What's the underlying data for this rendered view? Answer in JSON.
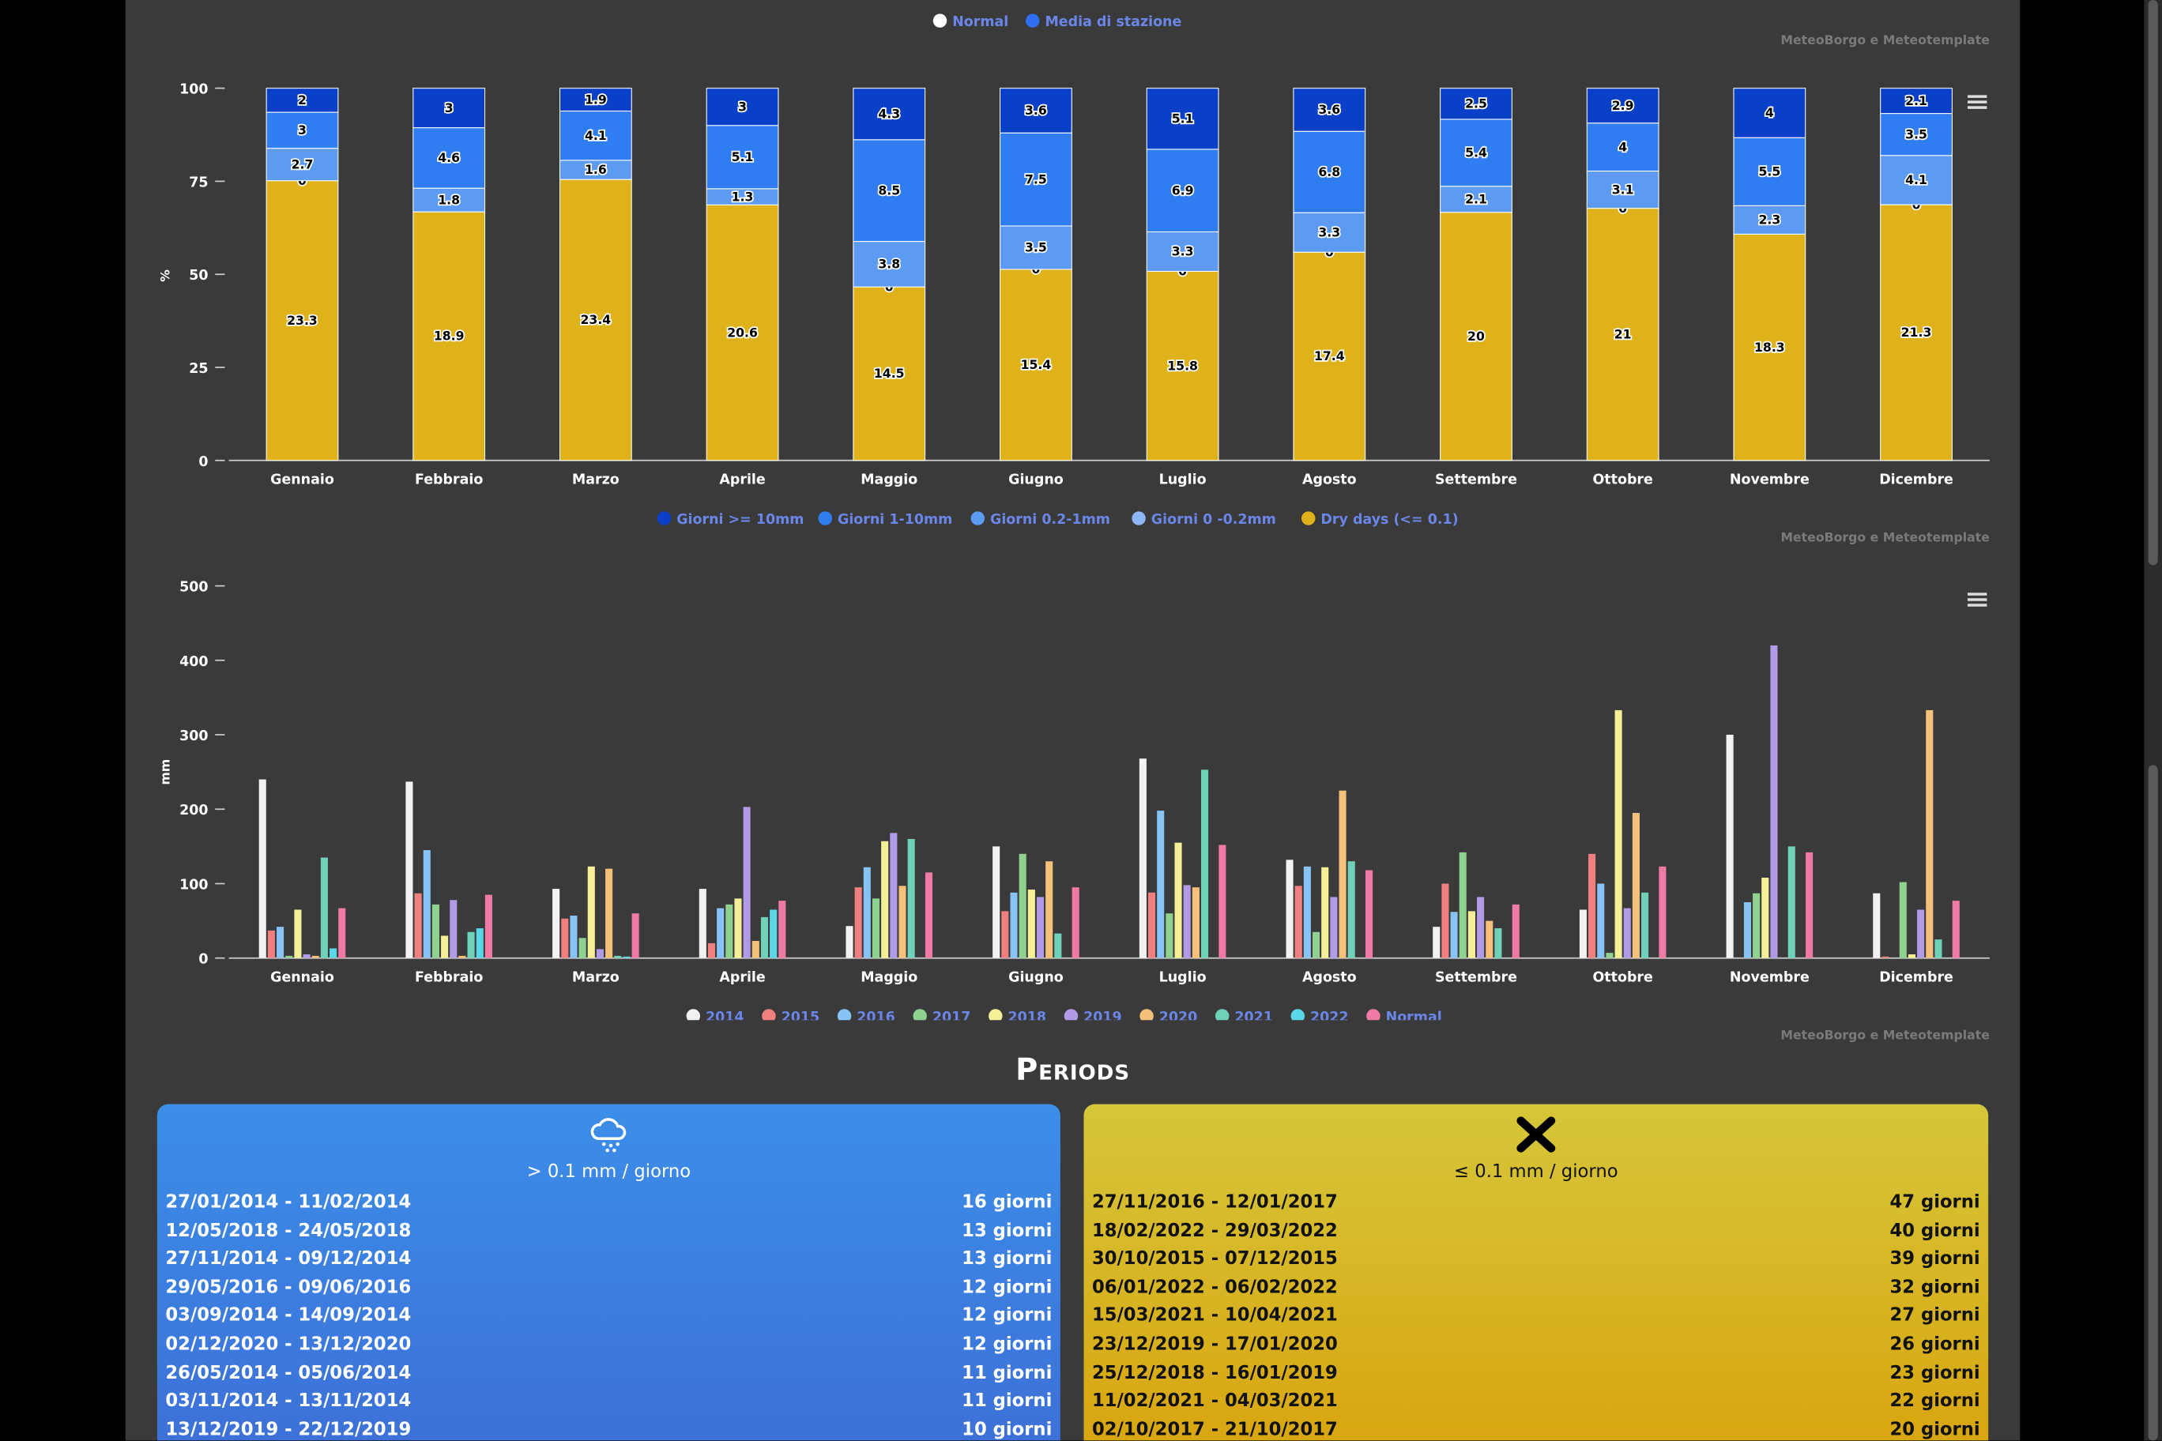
{
  "chart1": {
    "legend": [
      {
        "name": "Normal",
        "color": "#ffffff"
      },
      {
        "name": "Media di stazione",
        "color": "#2f6ef0"
      }
    ],
    "credit": "MeteoBorgo e Meteotemplate"
  },
  "chart_data": [
    {
      "type": "bar",
      "stacked": true,
      "ylabel": "%",
      "ylim": [
        0,
        100
      ],
      "yticks": [
        "0",
        "25",
        "50",
        "75",
        "100"
      ],
      "categories": [
        "Gennaio",
        "Febbraio",
        "Marzo",
        "Aprile",
        "Maggio",
        "Giugno",
        "Luglio",
        "Agosto",
        "Settembre",
        "Ottobre",
        "Novembre",
        "Dicembre"
      ],
      "series": [
        {
          "name": "Dry days (<= 0.1)",
          "color": "#dfb21c",
          "values": [
            23.3,
            18.9,
            23.4,
            20.6,
            14.5,
            15.4,
            15.8,
            17.4,
            20,
            21,
            18.3,
            21.3
          ]
        },
        {
          "name": "Giorni 0 -0.2mm",
          "color": "#8fb6f5",
          "values": [
            0,
            0,
            0,
            0,
            0,
            0,
            0,
            0,
            0,
            0,
            0,
            0
          ]
        },
        {
          "name": "Giorni 0.2-1mm",
          "color": "#5d9bf2",
          "values": [
            2.7,
            1.8,
            1.6,
            1.3,
            3.8,
            3.5,
            3.3,
            3.3,
            2.1,
            3.1,
            2.3,
            4.1
          ]
        },
        {
          "name": "Giorni 1-10mm",
          "color": "#2f7df0",
          "values": [
            3,
            4.6,
            4.1,
            5.1,
            8.5,
            7.5,
            6.9,
            6.8,
            5.4,
            4,
            5.5,
            3.5
          ]
        },
        {
          "name": "Giorni >= 10mm",
          "color": "#0a3fc7",
          "values": [
            2,
            3,
            1.9,
            3,
            4.3,
            3.6,
            5.1,
            3.6,
            2.5,
            2.9,
            4,
            2.1
          ]
        }
      ],
      "data_labels": {
        "dry": [
          "23.3",
          "18.9",
          "23.4",
          "20.6",
          "14.5",
          "15.4",
          "15.8",
          "17.4",
          "20",
          "21",
          "18.3",
          "21.3"
        ],
        "g0": [
          "0",
          "",
          "",
          "",
          "0",
          "0",
          "0",
          "0",
          "",
          "0",
          "",
          "0"
        ],
        "g02": [
          "2.7",
          "1.8",
          "1.6",
          "1.3",
          "3.8",
          "3.5",
          "3.3",
          "3.3",
          "2.1",
          "3.1",
          "2.3",
          "4.1"
        ],
        "g1": [
          "3",
          "4.6",
          "4.1",
          "5.1",
          "8.5",
          "7.5",
          "6.9",
          "6.8",
          "5.4",
          "4",
          "5.5",
          "3.5"
        ],
        "g10": [
          "2",
          "3",
          "1.9",
          "3",
          "4.3",
          "3.6",
          "5.1",
          "3.6",
          "2.5",
          "2.9",
          "4",
          "2.1"
        ]
      },
      "legend_position": "bottom-center",
      "grid": false
    },
    {
      "type": "bar",
      "ylabel": "mm",
      "ylim": [
        0,
        500
      ],
      "yticks": [
        "0",
        "100",
        "200",
        "300",
        "400",
        "500"
      ],
      "categories": [
        "Gennaio",
        "Febbraio",
        "Marzo",
        "Aprile",
        "Maggio",
        "Giugno",
        "Luglio",
        "Agosto",
        "Settembre",
        "Ottobre",
        "Novembre",
        "Dicembre"
      ],
      "series": [
        {
          "name": "2014",
          "color": "#f2f2f2",
          "values": [
            240,
            237,
            93,
            93,
            43,
            150,
            268,
            132,
            42,
            65,
            300,
            87
          ]
        },
        {
          "name": "2015",
          "color": "#f08080",
          "values": [
            37,
            87,
            53,
            20,
            95,
            63,
            88,
            97,
            100,
            140,
            0,
            2
          ]
        },
        {
          "name": "2016",
          "color": "#87c3f5",
          "values": [
            42,
            145,
            57,
            67,
            122,
            88,
            198,
            123,
            62,
            100,
            75,
            0
          ]
        },
        {
          "name": "2017",
          "color": "#8fd18f",
          "values": [
            3,
            72,
            27,
            72,
            80,
            140,
            60,
            35,
            142,
            7,
            87,
            102
          ]
        },
        {
          "name": "2018",
          "color": "#f5f098",
          "values": [
            65,
            30,
            123,
            80,
            157,
            92,
            155,
            122,
            63,
            333,
            108,
            5
          ]
        },
        {
          "name": "2019",
          "color": "#b19be6",
          "values": [
            5,
            78,
            12,
            203,
            168,
            82,
            98,
            82,
            82,
            67,
            420,
            65
          ]
        },
        {
          "name": "2020",
          "color": "#f5c07a",
          "values": [
            3,
            3,
            120,
            23,
            97,
            130,
            95,
            225,
            50,
            195,
            0,
            333
          ]
        },
        {
          "name": "2021",
          "color": "#6fd2b8",
          "values": [
            135,
            35,
            3,
            55,
            160,
            33,
            253,
            130,
            40,
            88,
            150,
            25
          ]
        },
        {
          "name": "2022",
          "color": "#5ad6e6",
          "values": [
            13,
            40,
            2,
            65,
            0,
            0,
            0,
            0,
            0,
            0,
            0,
            0
          ]
        },
        {
          "name": "Normal",
          "color": "#f07aa6",
          "values": [
            67,
            85,
            60,
            77,
            115,
            95,
            152,
            118,
            72,
            123,
            142,
            77
          ]
        }
      ],
      "legend_position": "bottom-center",
      "grid": false
    }
  ],
  "chart2": {
    "legend": [
      "Giorni >= 10mm",
      "Giorni 1-10mm",
      "Giorni 0.2-1mm",
      "Giorni 0 -0.2mm",
      "Dry days (<= 0.1)"
    ],
    "legend_colors": [
      "#0a3fc7",
      "#2f7df0",
      "#5d9bf2",
      "#8fb6f5",
      "#dfb21c"
    ],
    "credit": "MeteoBorgo e Meteotemplate"
  },
  "chart3": {
    "legend": [
      "2014",
      "2015",
      "2016",
      "2017",
      "2018",
      "2019",
      "2020",
      "2021",
      "2022",
      "Normal"
    ],
    "credit": "MeteoBorgo e Meteotemplate"
  },
  "periods": {
    "title": "Periods",
    "rain": {
      "icon": "rain-cloud-icon",
      "subtitle": "> 0.1 mm / giorno",
      "rows": [
        {
          "range": "27/01/2014 - 11/02/2014",
          "days": "16 giorni"
        },
        {
          "range": "12/05/2018 - 24/05/2018",
          "days": "13 giorni"
        },
        {
          "range": "27/11/2014 - 09/12/2014",
          "days": "13 giorni"
        },
        {
          "range": "29/05/2016 - 09/06/2016",
          "days": "12 giorni"
        },
        {
          "range": "03/09/2014 - 14/09/2014",
          "days": "12 giorni"
        },
        {
          "range": "02/12/2020 - 13/12/2020",
          "days": "12 giorni"
        },
        {
          "range": "26/05/2014 - 05/06/2014",
          "days": "11 giorni"
        },
        {
          "range": "03/11/2014 - 13/11/2014",
          "days": "11 giorni"
        },
        {
          "range": "13/12/2019 - 22/12/2019",
          "days": "10 giorni"
        }
      ]
    },
    "dry": {
      "icon": "cross-icon",
      "subtitle": "≤ 0.1 mm / giorno",
      "rows": [
        {
          "range": "27/11/2016 - 12/01/2017",
          "days": "47 giorni"
        },
        {
          "range": "18/02/2022 - 29/03/2022",
          "days": "40 giorni"
        },
        {
          "range": "30/10/2015 - 07/12/2015",
          "days": "39 giorni"
        },
        {
          "range": "06/01/2022 - 06/02/2022",
          "days": "32 giorni"
        },
        {
          "range": "15/03/2021 - 10/04/2021",
          "days": "27 giorni"
        },
        {
          "range": "23/12/2019 - 17/01/2020",
          "days": "26 giorni"
        },
        {
          "range": "25/12/2018 - 16/01/2019",
          "days": "23 giorni"
        },
        {
          "range": "11/02/2021 - 04/03/2021",
          "days": "22 giorni"
        },
        {
          "range": "02/10/2017 - 21/10/2017",
          "days": "20 giorni"
        }
      ]
    }
  }
}
